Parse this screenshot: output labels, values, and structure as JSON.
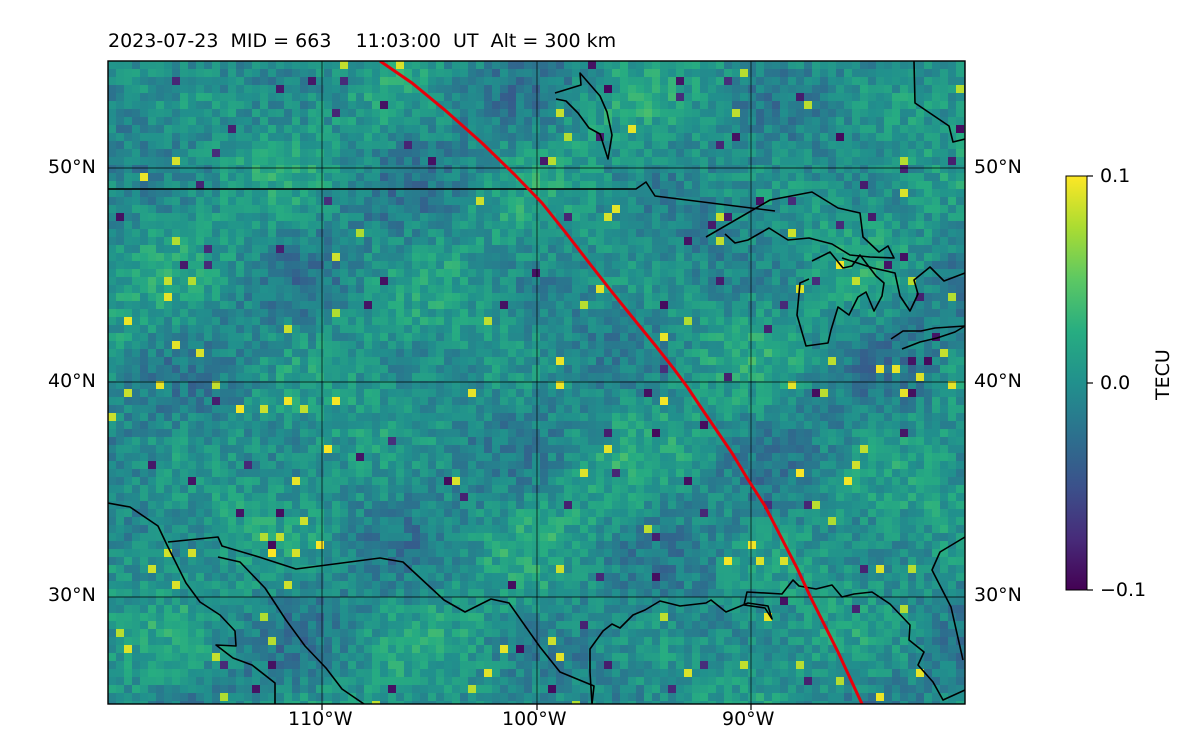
{
  "title": {
    "date": "2023-07-23",
    "mid": "MID = 663",
    "time": "11:03:00  UT",
    "altitude": "Alt = 300 km"
  },
  "map": {
    "lon_range": [
      -120,
      -80
    ],
    "lat_range": [
      25,
      55
    ],
    "lat_labels": [
      "50°N",
      "40°N",
      "30°N"
    ],
    "lon_labels": [
      "110°W",
      "100°W",
      "90°W"
    ],
    "satellite_track_color": "#e8000b",
    "grid_color": "#000000",
    "coastline_color": "#000000"
  },
  "colorbar": {
    "label": "TECU",
    "colormap": "viridis",
    "tick_labels": [
      "0.1",
      "0.0",
      "−0.1"
    ],
    "vmin": -0.1,
    "vmax": 0.1
  }
}
